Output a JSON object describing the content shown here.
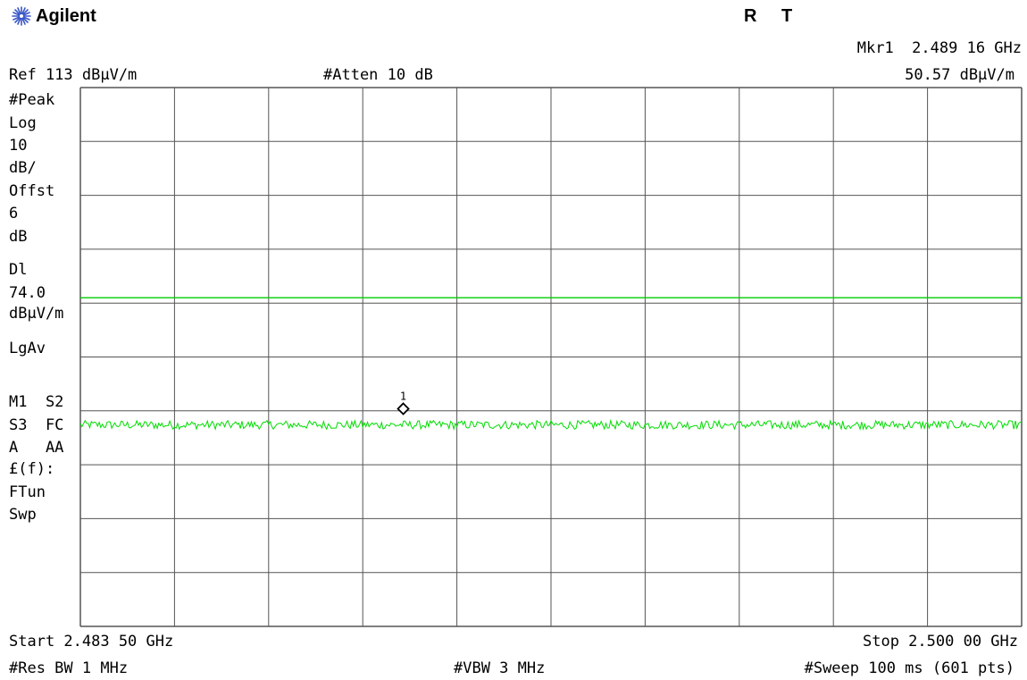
{
  "header": {
    "brand": "Agilent",
    "status_r": "R",
    "status_t": "T",
    "marker_label": "Mkr1  2.489 16 GHz",
    "marker_value": "50.57 dBµV/m",
    "ref_level": "Ref 113 dBµV/m",
    "attenuation": "#Atten 10 dB"
  },
  "side_panel": [
    "#Peak",
    "Log",
    "10",
    "dB/",
    "Offst",
    "6",
    "dB",
    "Dl",
    "74.0",
    "dBµV/m",
    "LgAv",
    "",
    "M1  S2",
    "S3  FC",
    "A   AA",
    "£(f):",
    "FTun",
    "Swp"
  ],
  "footer": {
    "start": "Start 2.483 50 GHz",
    "stop": "Stop 2.500 00 GHz",
    "res_bw": "#Res BW 1 MHz",
    "vbw": "#VBW 3 MHz",
    "sweep": "#Sweep 100 ms (601 pts)"
  },
  "colors": {
    "trace": "#00dd00",
    "display_line": "#00cc00",
    "grid": "#555555",
    "marker": "#000000"
  },
  "chart_data": {
    "type": "line",
    "x_unit": "GHz",
    "y_unit": "dBµV/m",
    "x_start": 2.4835,
    "x_stop": 2.5,
    "y_top": 113,
    "y_scale_per_div": 10,
    "y_divisions": 10,
    "x_divisions": 10,
    "display_line": 74.0,
    "points": 601,
    "noise_floor_mean": 50.4,
    "noise_floor_variation": 0.8,
    "marker": {
      "label": "1",
      "x": 2.48916,
      "y": 50.57
    },
    "grid": true
  }
}
